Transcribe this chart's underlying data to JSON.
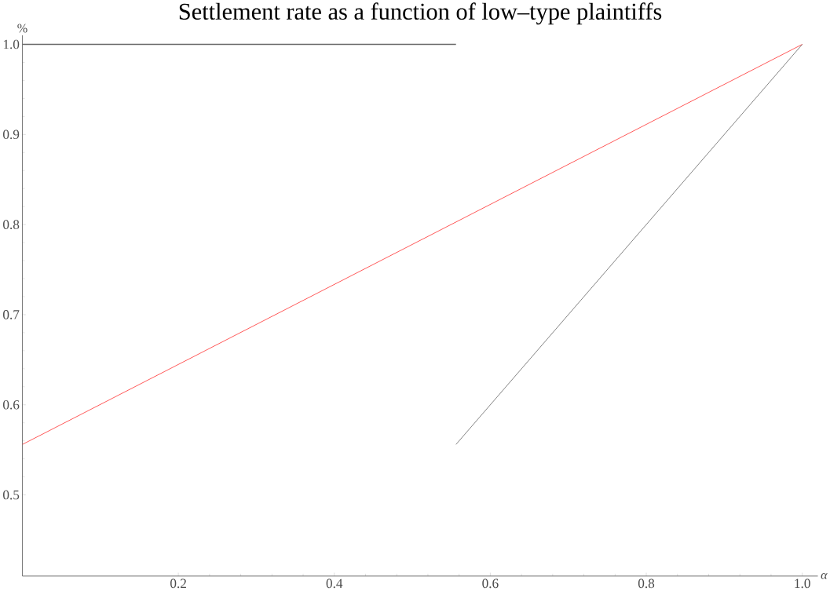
{
  "chart_data": {
    "type": "line",
    "title": "Settlement rate as a function of low–type plaintiffs",
    "xlabel": "α",
    "ylabel": "%",
    "xlim": [
      0,
      1.02
    ],
    "ylim": [
      0.41,
      1.01
    ],
    "xticks": [
      {
        "value": 0.2,
        "label": "0.2"
      },
      {
        "value": 0.4,
        "label": "0.4"
      },
      {
        "value": 0.6,
        "label": "0.6"
      },
      {
        "value": 0.8,
        "label": "0.8"
      },
      {
        "value": 1,
        "label": "1.0"
      }
    ],
    "yticks": [
      {
        "value": 0.5,
        "label": "0.5"
      },
      {
        "value": 0.6,
        "label": "0.6"
      },
      {
        "value": 0.7,
        "label": "0.7"
      },
      {
        "value": 0.8,
        "label": "0.8"
      },
      {
        "value": 0.9,
        "label": "0.9"
      },
      {
        "value": 1,
        "label": "1.0"
      }
    ],
    "marker": "none",
    "line_style": "solid",
    "series": [
      {
        "color": "#666666",
        "x": [
          0,
          0.556
        ],
        "values": [
          1,
          1
        ]
      },
      {
        "color": "#ff3333",
        "x": [
          0,
          1
        ],
        "values": [
          0.556,
          1
        ]
      },
      {
        "color": "#333333",
        "x": [
          0.556,
          1
        ],
        "values": [
          0.556,
          1
        ]
      }
    ]
  }
}
